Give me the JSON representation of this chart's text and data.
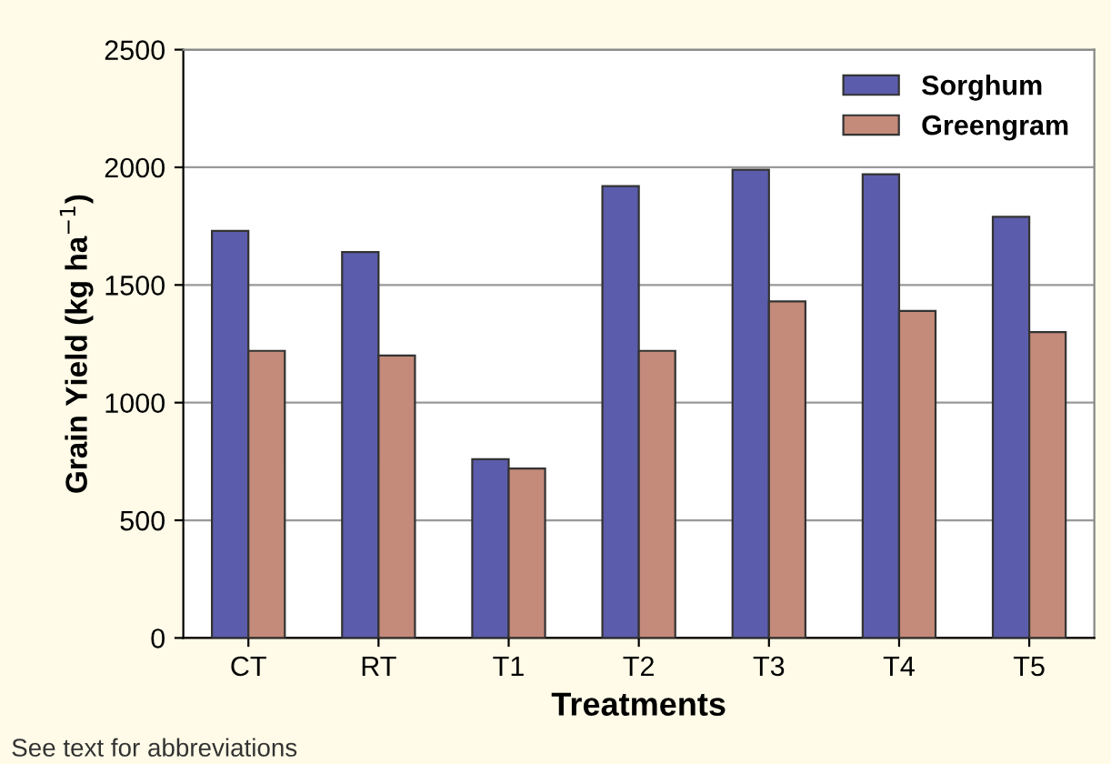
{
  "chart_data": {
    "type": "bar",
    "xlabel": "Treatments",
    "ylabel": "Grain Yield (kg ha$^{−1}$)",
    "categories": [
      "CT",
      "RT",
      "T1",
      "T2",
      "T3",
      "T4",
      "T5"
    ],
    "series": [
      {
        "name": "Sorghum",
        "color": "#5c5cac",
        "values": [
          1730,
          1640,
          760,
          1920,
          1990,
          1970,
          1790
        ]
      },
      {
        "name": "Greengram",
        "color": "#c48a7a",
        "values": [
          1220,
          1200,
          720,
          1220,
          1430,
          1390,
          1300
        ]
      }
    ],
    "ylim": [
      0,
      2500
    ],
    "yticks": [
      0,
      500,
      1000,
      1500,
      2000,
      2500
    ],
    "grid": "y",
    "legend": "top right",
    "annotations": [
      "See text for abbreviations"
    ]
  }
}
